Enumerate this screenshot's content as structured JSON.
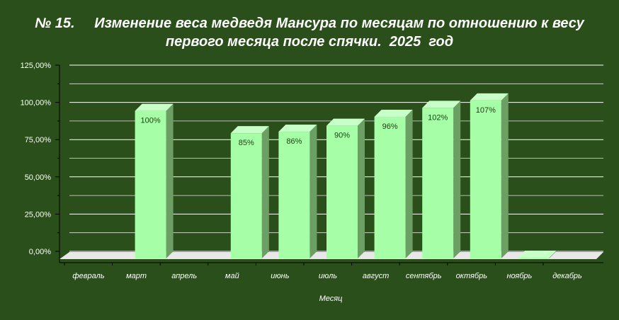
{
  "chart_data": {
    "type": "bar",
    "title_line1": "№ 15.     Изменение веса медведя Мансура по месяцам по отношению к весу",
    "title_line2": "первого месяца после спячки.  2025  год",
    "xlabel": "Месяц",
    "ylabel": "",
    "categories": [
      "февраль",
      "март",
      "апрель",
      "май",
      "июнь",
      "июль",
      "август",
      "сентябрь",
      "октябрь",
      "ноябрь",
      "декабрь"
    ],
    "values": [
      null,
      100,
      null,
      85,
      86,
      90,
      96,
      102,
      107,
      0,
      null
    ],
    "value_labels": [
      "",
      "100%",
      "",
      "85%",
      "86%",
      "90%",
      "96%",
      "102%",
      "107%",
      "",
      ""
    ],
    "y_ticks": [
      "0,00%",
      "25,00%",
      "50,00%",
      "75,00%",
      "100,00%",
      "125,00%"
    ],
    "ylim": [
      0,
      125
    ],
    "grid": true,
    "legend": "none",
    "colors": {
      "background": "#2a4f1a",
      "bar_front": "#a6ffa6",
      "bar_side": "#6c9f63",
      "bar_top": "#c8ffc8",
      "grid": "#ffffff",
      "floor": "#e8e8e8",
      "label": "#1e3a12"
    }
  }
}
